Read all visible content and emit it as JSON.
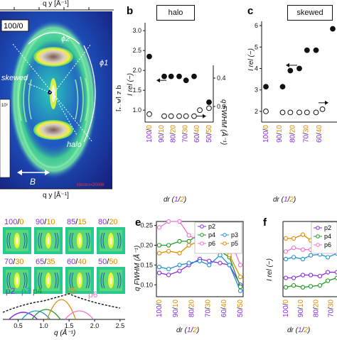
{
  "colors": {
    "purple": "#8a2be2",
    "orange": "#e08a00",
    "p2": "#8a2be2",
    "p3": "#1f8fd6",
    "p4": "#1f9a1f",
    "p5": "#e08a00",
    "p6": "#ee6fd0"
  },
  "panel_a": {
    "qy_axis_top": "q y [Å⁻¹]",
    "qy_axis_bottom": "q y [Å⁻¹]",
    "ratio_label": "100/0",
    "phi2": "ϕ2",
    "phi1": "ϕ1",
    "skewed": "skewed",
    "halo": "halo",
    "B": "B",
    "watermark": "Mestro=20698",
    "right_axis": "q z [Å⁻¹]",
    "side_tick": "10³"
  },
  "panel_b": {
    "letter": "b",
    "box_title": "halo",
    "ylabel": "I rel (−)",
    "ylabel_right": "q FWHM (Å⁻¹)",
    "y_ticks": [
      "3.0",
      "2.5",
      "2.0",
      "1.5",
      "1.0"
    ],
    "y_right_ticks": [
      "0.4",
      "0.3"
    ],
    "xlabel_prefix": "dr (",
    "xlabel_one": "1",
    "xlabel_slash": "/",
    "xlabel_two": "2",
    "xlabel_suffix": ")"
  },
  "panel_c": {
    "letter": "c",
    "box_title": "skewed",
    "ylabel": "I rel (−)",
    "y_ticks": [
      "6",
      "5",
      "4",
      "3",
      "2"
    ],
    "xlabel_prefix": "dr (",
    "xlabel_one": "1",
    "xlabel_slash": "/",
    "xlabel_two": "2",
    "xlabel_suffix": ")"
  },
  "panel_d": {
    "grid_labels": [
      {
        "a": "100",
        "b": "0"
      },
      {
        "a": "90",
        "b": "10"
      },
      {
        "a": "85",
        "b": "15"
      },
      {
        "a": "80",
        "b": "20"
      },
      {
        "a": "70",
        "b": "30"
      },
      {
        "a": "65",
        "b": "35"
      },
      {
        "a": "60",
        "b": "40"
      },
      {
        "a": "50",
        "b": "50"
      }
    ],
    "peaks": [
      "p2",
      "p3",
      "p4",
      "p5",
      "p6"
    ],
    "x_ticks": [
      "0.5",
      "1.0",
      "1.5",
      "2.0",
      "2.5"
    ],
    "xlabel": "q (Å⁻¹)"
  },
  "panel_e": {
    "letter": "e",
    "ylabel": "q FWHM (Å⁻¹)",
    "y_ticks": [
      "0.25",
      "0.20",
      "0.15",
      "0.10"
    ],
    "legend": [
      "p2",
      "p3",
      "p4",
      "p5",
      "p6"
    ],
    "xlabel_prefix": "dr (",
    "xlabel_one": "1",
    "xlabel_slash": "/",
    "xlabel_two": "2",
    "xlabel_suffix": ")"
  },
  "panel_f": {
    "letter": "f",
    "ylabel": "I rel (−)",
    "legend": [
      "p2",
      "p4",
      "p6"
    ],
    "xlabel_prefix": "dr (",
    "xlabel_one": "1",
    "xlabel_slash": "/",
    "xlabel_two": "2",
    "xlabel_suffix": ")"
  },
  "x_categories": [
    {
      "a": "100",
      "b": "0"
    },
    {
      "a": "90",
      "b": "10"
    },
    {
      "a": "80",
      "b": "20"
    },
    {
      "a": "70",
      "b": "30"
    },
    {
      "a": "60",
      "b": "40"
    },
    {
      "a": "50",
      "b": "50"
    }
  ],
  "chart_data": [
    {
      "type": "scatter",
      "panel": "b",
      "title": "halo",
      "xlabel": "dr (1/2)",
      "ylabel": "I rel (−)",
      "ylim": [
        0.7,
        3.2
      ],
      "categories": [
        "100/0",
        "90/10",
        "80/20",
        "70/30",
        "60/40",
        "50/50"
      ],
      "series": [
        {
          "name": "",
          "style": "filled",
          "x": [
            0,
            1.3,
            1.9,
            2.6,
            3.2,
            3.9,
            5.2
          ],
          "values": [
            2.35,
            1.85,
            1.85,
            1.85,
            1.75,
            1.85,
            1.2
          ]
        },
        {
          "name": "",
          "style": "open",
          "x": [
            0,
            1.3,
            1.9,
            2.6,
            3.2,
            3.9,
            4.4,
            5.2
          ],
          "values": [
            0.9,
            0.85,
            0.85,
            0.85,
            0.85,
            0.85,
            1.0,
            1.05
          ]
        }
      ]
    },
    {
      "type": "scatter",
      "panel": "c",
      "title": "skewed",
      "xlabel": "dr (1/2)",
      "ylabel": "I rel (−)",
      "ylim": [
        1.5,
        6.2
      ],
      "categories": [
        "100/0",
        "90/10",
        "80/20",
        "70/30",
        "60/40",
        "50/50"
      ],
      "series": [
        {
          "name": "",
          "style": "filled",
          "x": [
            0,
            1.3,
            1.9,
            2.6,
            3.2,
            3.9,
            5.2
          ],
          "values": [
            3.15,
            3.15,
            3.9,
            4.0,
            4.85,
            4.85,
            5.85
          ]
        },
        {
          "name": "",
          "style": "open",
          "x": [
            0,
            1.3,
            1.9,
            2.6,
            3.2,
            3.9,
            4.4
          ],
          "values": [
            2.0,
            1.95,
            1.95,
            1.95,
            1.95,
            1.95,
            2.1
          ]
        }
      ]
    },
    {
      "type": "line",
      "panel": "e",
      "xlabel": "dr (1/2)",
      "ylabel": "q FWHM (Å⁻¹)",
      "ylim": [
        0.07,
        0.26
      ],
      "x": [
        0,
        0.6,
        1.3,
        1.9,
        2.6,
        3.2,
        3.9,
        4.5,
        5.2
      ],
      "categories": [
        "100/0",
        "90/10",
        "80/20",
        "70/30",
        "60/40",
        "50/50"
      ],
      "series": [
        {
          "name": "p2",
          "values": [
            0.13,
            0.125,
            0.135,
            0.15,
            0.165,
            0.16,
            0.155,
            0.15,
            0.1
          ]
        },
        {
          "name": "p3",
          "values": [
            0.145,
            0.14,
            0.15,
            0.155,
            0.16,
            0.15,
            0.175,
            0.15,
            0.085
          ]
        },
        {
          "name": "p4",
          "values": [
            0.2,
            0.2,
            0.21,
            0.21,
            0.23,
            0.215,
            0.185,
            0.17,
            0.095
          ]
        },
        {
          "name": "p5",
          "values": [
            0.18,
            0.185,
            0.18,
            0.2,
            0.21,
            0.225,
            0.2,
            0.175,
            0.12
          ]
        },
        {
          "name": "p6",
          "values": [
            0.245,
            0.26,
            0.26,
            0.225,
            0.21,
            0.22,
            0.215,
            0.22,
            0.15
          ]
        }
      ]
    },
    {
      "type": "line",
      "panel": "f",
      "xlabel": "dr (1/2)",
      "ylabel": "I rel (−)",
      "x": [
        0,
        0.6,
        1.3,
        1.9,
        2.6,
        3.2,
        3.9
      ],
      "categories": [
        "100/0",
        "90/10",
        "80/20",
        "70/30"
      ],
      "series": [
        {
          "name": "p2",
          "values": [
            0.3,
            0.3,
            0.33,
            0.33,
            0.32,
            0.36,
            0.36
          ]
        },
        {
          "name": "p4",
          "values": [
            0.2,
            0.22,
            0.2,
            0.21,
            0.22,
            0.27,
            0.3
          ]
        },
        {
          "name": "p6",
          "values": [
            0.58,
            0.62,
            0.6,
            0.6,
            0.62,
            0.62,
            0.64
          ]
        },
        {
          "name": "p5",
          "values": [
            0.72,
            0.72,
            0.76,
            0.7,
            0.76,
            0.74,
            0.78
          ]
        },
        {
          "name": "p3",
          "values": [
            0.5,
            0.52,
            0.5,
            0.54,
            0.55,
            0.52,
            0.56
          ]
        }
      ]
    }
  ]
}
